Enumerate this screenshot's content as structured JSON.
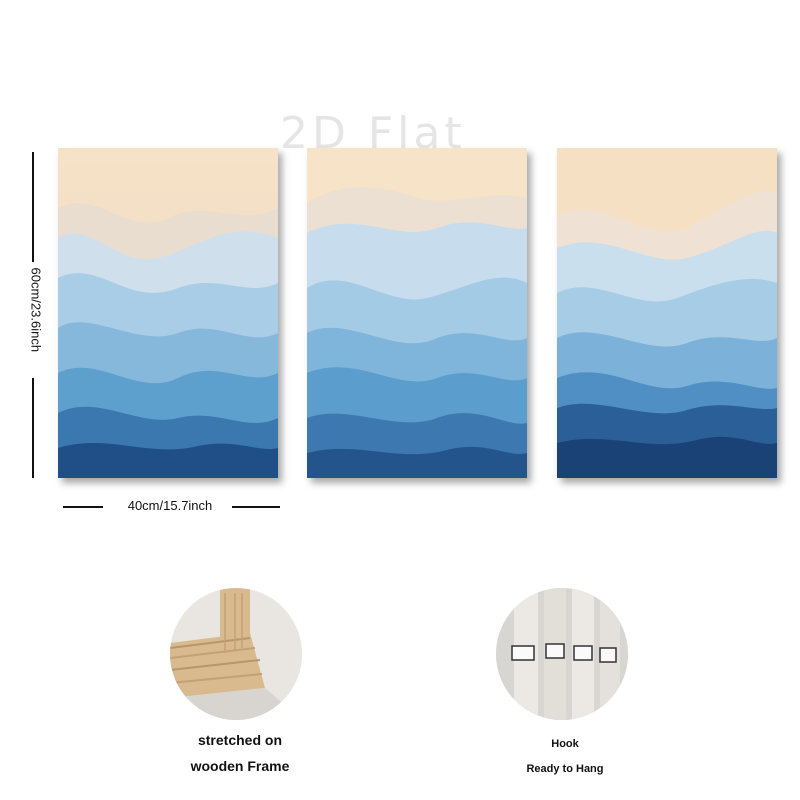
{
  "watermark": "2D Flat",
  "dimensions": {
    "height_label": "60cm/23.6inch",
    "width_label": "40cm/15.7inch"
  },
  "panels": [
    {
      "name": "left-canvas-panel"
    },
    {
      "name": "middle-canvas-panel"
    },
    {
      "name": "right-canvas-panel"
    }
  ],
  "details": {
    "frame": {
      "icon": "wooden-frame-photo",
      "caption_line1": "stretched on",
      "caption_line2": "wooden Frame"
    },
    "hook": {
      "icon": "hook-photo",
      "caption_line1": "Hook",
      "caption_line2": "Ready to Hang"
    }
  },
  "colors": {
    "cream": "#f6e3c8",
    "light_blue": "#a9cde6",
    "mid_blue": "#5d9fcd",
    "deep_blue": "#1f4f86",
    "wood": "#d9b98e"
  }
}
